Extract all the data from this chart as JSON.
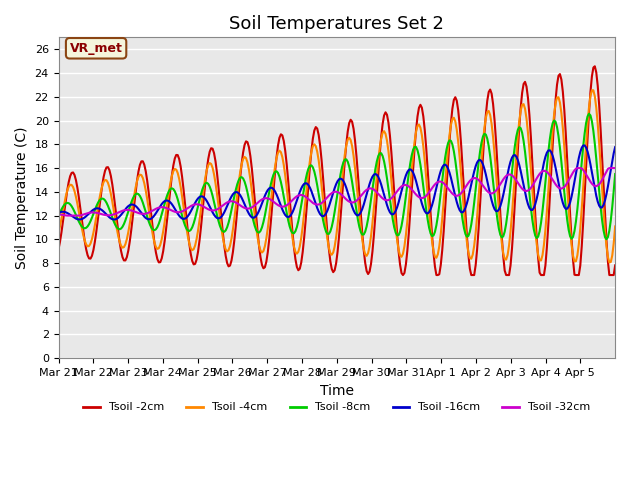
{
  "title": "Soil Temperatures Set 2",
  "xlabel": "Time",
  "ylabel": "Soil Temperature (C)",
  "ylim": [
    0,
    27
  ],
  "yticks": [
    0,
    2,
    4,
    6,
    8,
    10,
    12,
    14,
    16,
    18,
    20,
    22,
    24,
    26
  ],
  "x_tick_labels": [
    "Mar 21",
    "Mar 22",
    "Mar 23",
    "Mar 24",
    "Mar 25",
    "Mar 26",
    "Mar 27",
    "Mar 28",
    "Mar 29",
    "Mar 30",
    "Mar 31",
    "Apr 1",
    "Apr 2",
    "Apr 3",
    "Apr 4",
    "Apr 5"
  ],
  "series": {
    "Tsoil -2cm": {
      "color": "#cc0000",
      "linewidth": 1.5
    },
    "Tsoil -4cm": {
      "color": "#ff8800",
      "linewidth": 1.5
    },
    "Tsoil -8cm": {
      "color": "#00cc00",
      "linewidth": 1.5
    },
    "Tsoil -16cm": {
      "color": "#0000cc",
      "linewidth": 1.5
    },
    "Tsoil -32cm": {
      "color": "#cc00cc",
      "linewidth": 1.5
    }
  },
  "annotation_text": "VR_met",
  "bg_color": "#e8e8e8",
  "grid_color": "#ffffff",
  "title_fontsize": 13,
  "label_fontsize": 10,
  "tick_fontsize": 8
}
